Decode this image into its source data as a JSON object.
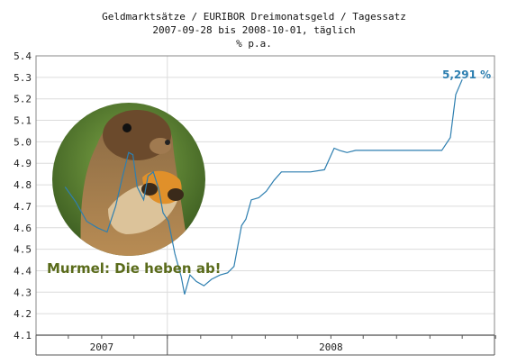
{
  "chart_data": {
    "type": "line",
    "title": "Geldmarktsätze / EURIBOR Dreimonatsgeld / Tagessatz",
    "subtitle": "2007-09-28 bis 2008-10-01, täglich",
    "ylabel": "% p.a.",
    "xlabel": "",
    "ylim": [
      4.1,
      5.4
    ],
    "yticks": [
      "4.1",
      "4.2",
      "4.3",
      "4.4",
      "4.5",
      "4.6",
      "4.7",
      "4.8",
      "4.9",
      "5.0",
      "5.1",
      "5.2",
      "5.3",
      "5.4"
    ],
    "xticks": [
      "2007",
      "2008"
    ],
    "grid": true,
    "last_value_label": "5,291 %",
    "annotation": "Murmel: Die heben ab!",
    "image_description": "marmot-photo",
    "line_color": "#2e7fb0",
    "series": [
      {
        "x": [
          "2007-09-28",
          "2007-10-08",
          "2007-10-18",
          "2007-10-28",
          "2007-11-06",
          "2007-11-14",
          "2007-11-20",
          "2007-11-26",
          "2007-11-30",
          "2007-12-04",
          "2007-12-10",
          "2007-12-14",
          "2007-12-19",
          "2007-12-24",
          "2007-12-28",
          "2008-01-02",
          "2008-01-08",
          "2008-01-14",
          "2008-01-17",
          "2008-01-22",
          "2008-01-28",
          "2008-02-04",
          "2008-02-11",
          "2008-02-19",
          "2008-02-26",
          "2008-03-03",
          "2008-03-10",
          "2008-03-14",
          "2008-03-19",
          "2008-03-26",
          "2008-04-02",
          "2008-04-09",
          "2008-04-16",
          "2008-04-24",
          "2008-05-01",
          "2008-05-13",
          "2008-05-26",
          "2008-06-04",
          "2008-06-09",
          "2008-06-16",
          "2008-06-24",
          "2008-07-01",
          "2008-07-15",
          "2008-07-31",
          "2008-08-15",
          "2008-09-02",
          "2008-09-12",
          "2008-09-20",
          "2008-09-25",
          "2008-10-01"
        ],
        "values": [
          4.79,
          4.72,
          4.63,
          4.6,
          4.58,
          4.7,
          4.83,
          4.95,
          4.94,
          4.79,
          4.73,
          4.84,
          4.86,
          4.78,
          4.67,
          4.63,
          4.48,
          4.37,
          4.29,
          4.38,
          4.35,
          4.33,
          4.36,
          4.38,
          4.39,
          4.42,
          4.61,
          4.64,
          4.73,
          4.74,
          4.77,
          4.82,
          4.86,
          4.86,
          4.86,
          4.86,
          4.87,
          4.97,
          4.96,
          4.95,
          4.96,
          4.96,
          4.96,
          4.96,
          4.96,
          4.96,
          4.96,
          5.02,
          5.22,
          5.29
        ]
      }
    ]
  }
}
